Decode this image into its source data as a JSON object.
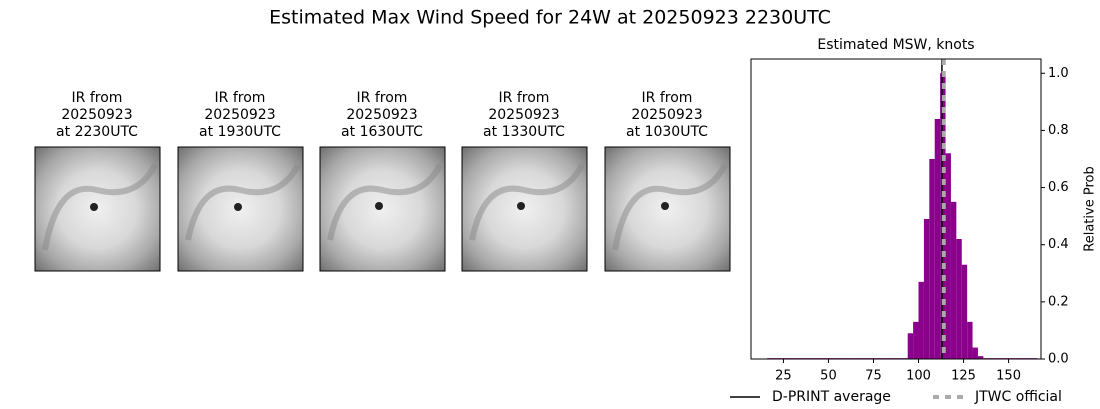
{
  "title": "Estimated Max Wind Speed for 24W at 20250923 2230UTC",
  "panels": [
    {
      "lines": [
        "IR from",
        "20250923",
        "at 2230UTC"
      ]
    },
    {
      "lines": [
        "IR from",
        "20250923",
        "at 1930UTC"
      ]
    },
    {
      "lines": [
        "IR from",
        "20250923",
        "at 1630UTC"
      ]
    },
    {
      "lines": [
        "IR from",
        "20250923",
        "at 1330UTC"
      ]
    },
    {
      "lines": [
        "IR from",
        "20250923",
        "at 1030UTC"
      ]
    }
  ],
  "chart_data": {
    "type": "histogram",
    "title": "Estimated MSW, knots",
    "ylabel": "Relative Prob",
    "color": "#8b008b",
    "bins": [
      16,
      19,
      22,
      25,
      28,
      31,
      34,
      37,
      40,
      43,
      46,
      49,
      52,
      55,
      58,
      61,
      64,
      67,
      70,
      73,
      76,
      79,
      82,
      85,
      88,
      91,
      94,
      97,
      100,
      103,
      106,
      109,
      112,
      115,
      118,
      121,
      124,
      127,
      130,
      133,
      136,
      139,
      142,
      145,
      148,
      151,
      154,
      157,
      160,
      163,
      166
    ],
    "values": [
      0.003,
      0.003,
      0.003,
      0.003,
      0.003,
      0.003,
      0.003,
      0.003,
      0.003,
      0.003,
      0.003,
      0.003,
      0.003,
      0.003,
      0.003,
      0.003,
      0.003,
      0.003,
      0.003,
      0.003,
      0.003,
      0.003,
      0.003,
      0.003,
      0.003,
      0.003,
      0.09,
      0.13,
      0.27,
      0.49,
      0.7,
      0.84,
      1.0,
      0.72,
      0.55,
      0.42,
      0.33,
      0.13,
      0.04,
      0.01,
      0.003,
      0.003,
      0.003,
      0.003,
      0.003,
      0.003,
      0.003,
      0.003,
      0.003,
      0.003
    ],
    "xlim": [
      7,
      168
    ],
    "xticks": [
      25,
      50,
      75,
      100,
      125,
      150
    ],
    "ylim": [
      0,
      1.05
    ],
    "yticks": [
      {
        "value": 0,
        "label": "0.0"
      },
      0.2,
      0.4,
      0.6,
      0.8,
      {
        "value": 1,
        "label": "1.0"
      }
    ],
    "lines": [
      {
        "name": "D-PRINT average",
        "value": 113,
        "color": "#000000",
        "dashed": false
      },
      {
        "name": "JTWC official",
        "value": 114,
        "color": "#aaaaaa",
        "dashed": true
      }
    ]
  }
}
